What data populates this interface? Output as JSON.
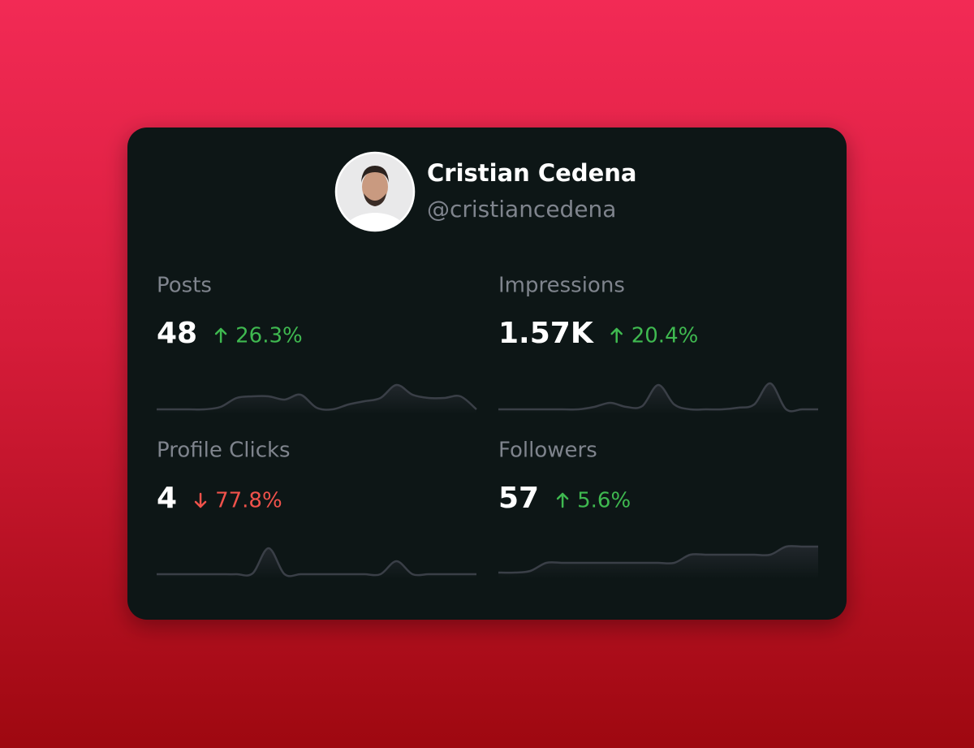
{
  "profile": {
    "name": "Cristian Cedena",
    "handle": "@cristiancedena"
  },
  "stats": [
    {
      "label": "Posts",
      "value": "48",
      "change": "26.3%",
      "direction": "up",
      "trend": [
        0,
        0,
        0,
        0,
        3,
        14,
        16,
        16,
        12,
        18,
        2,
        0,
        6,
        10,
        14,
        30,
        18,
        14,
        14,
        16,
        0
      ]
    },
    {
      "label": "Impressions",
      "value": "1.57K",
      "change": "20.4%",
      "direction": "up",
      "trend": [
        0,
        0,
        0,
        0,
        0,
        0,
        3,
        8,
        3,
        4,
        30,
        6,
        0,
        0,
        0,
        2,
        6,
        32,
        0,
        0,
        0
      ]
    },
    {
      "label": "Profile Clicks",
      "value": "4",
      "change": "77.8%",
      "direction": "down",
      "trend": [
        0,
        0,
        0,
        0,
        0,
        0,
        1,
        32,
        0,
        0,
        0,
        0,
        0,
        0,
        0,
        16,
        0,
        0,
        0,
        0,
        0
      ]
    },
    {
      "label": "Followers",
      "value": "57",
      "change": "5.6%",
      "direction": "up",
      "trend": [
        2,
        2,
        4,
        14,
        14,
        14,
        14,
        14,
        14,
        14,
        14,
        14,
        24,
        24,
        24,
        24,
        24,
        24,
        34,
        34,
        34
      ]
    }
  ]
}
